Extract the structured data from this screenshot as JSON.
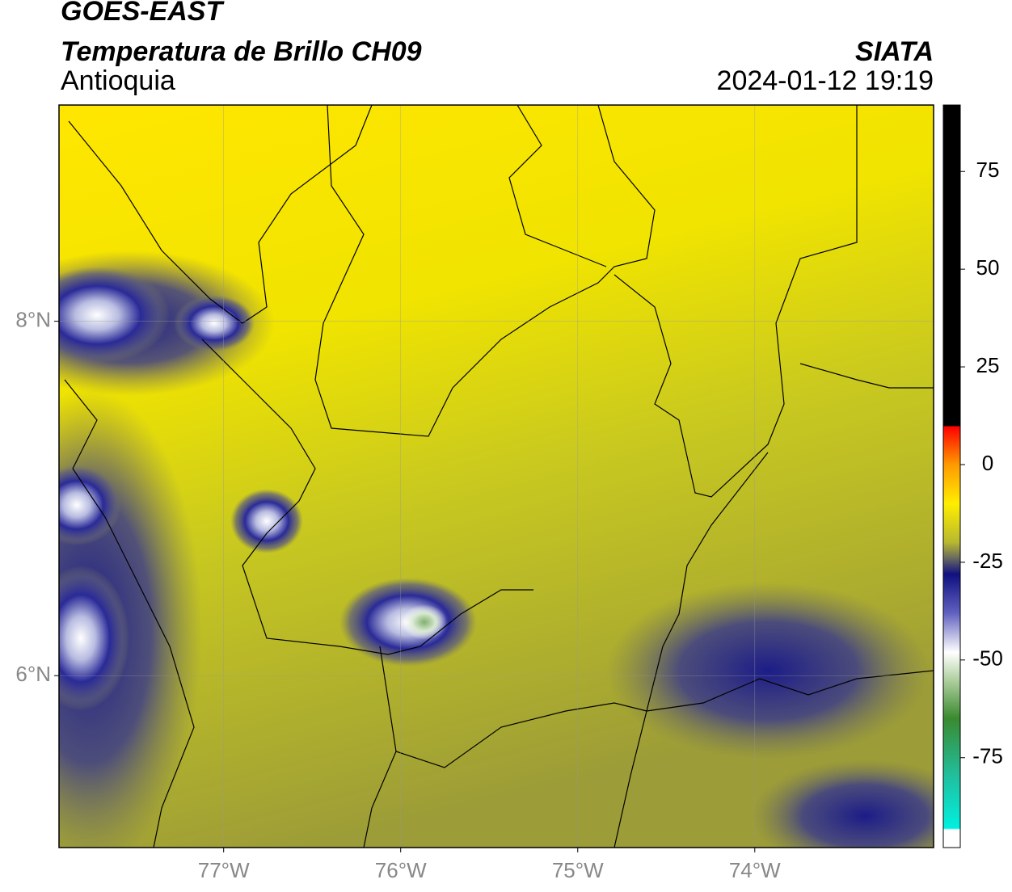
{
  "header": {
    "product": "GOES-EAST",
    "title": "Temperatura de Brillo CH09",
    "region": "Antioquia",
    "source": "SIATA",
    "timestamp": "2024-01-12 19:19"
  },
  "map": {
    "xlim": [
      -77.93,
      -72.99
    ],
    "ylim": [
      5.03,
      9.22
    ],
    "xticks": [
      {
        "value": -77,
        "label": "77°W"
      },
      {
        "value": -76,
        "label": "76°W"
      },
      {
        "value": -75,
        "label": "75°W"
      },
      {
        "value": -74,
        "label": "74°W"
      }
    ],
    "yticks": [
      {
        "value": 6,
        "label": "6°N"
      },
      {
        "value": 8,
        "label": "8°N"
      }
    ],
    "grid": true
  },
  "colorbar": {
    "lim": [
      -98,
      92
    ],
    "ticks": [
      75,
      50,
      25,
      0,
      -25,
      -50,
      -75
    ]
  }
}
